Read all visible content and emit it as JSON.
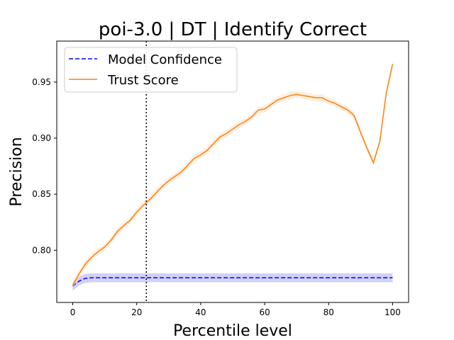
{
  "chart_data": {
    "type": "line",
    "title": "poi-3.0 | DT | Identify Correct",
    "xlabel": "Percentile level",
    "ylabel": "Precision",
    "xlim": [
      -5,
      105
    ],
    "ylim": [
      0.7535,
      0.9865
    ],
    "xticks": [
      0,
      20,
      40,
      60,
      80,
      100
    ],
    "yticks": [
      0.8,
      0.85,
      0.9,
      0.95
    ],
    "xtick_labels": [
      "0",
      "20",
      "40",
      "60",
      "80",
      "100"
    ],
    "ytick_labels": [
      "0.80",
      "0.85",
      "0.90",
      "0.95"
    ],
    "grid": false,
    "legend_position": "top-left",
    "vline": {
      "x": 23,
      "style": "dotted",
      "color": "#000000"
    },
    "series": [
      {
        "name": "Model Confidence",
        "color": "#0000ff",
        "style": "dashed",
        "band_color": "#9999ee",
        "x": [
          0,
          1,
          2,
          3,
          4,
          6,
          10,
          20,
          23,
          40,
          60,
          80,
          100
        ],
        "y": [
          0.768,
          0.7705,
          0.7725,
          0.774,
          0.775,
          0.7755,
          0.7755,
          0.7755,
          0.7755,
          0.7755,
          0.7755,
          0.7755,
          0.7755
        ],
        "band_halfwidth": 0.004
      },
      {
        "name": "Trust Score",
        "color": "#ff7f0e",
        "style": "solid",
        "band_color": "#ffd9b3",
        "x": [
          0,
          2,
          4,
          6,
          8,
          10,
          12,
          14,
          16,
          18,
          20,
          22,
          24,
          26,
          28,
          30,
          32,
          34,
          36,
          38,
          40,
          42,
          44,
          46,
          48,
          50,
          52,
          54,
          56,
          58,
          60,
          62,
          64,
          66,
          68,
          70,
          72,
          74,
          76,
          78,
          80,
          82,
          84,
          86,
          88,
          90,
          92,
          94,
          96,
          98,
          100
        ],
        "y": [
          0.769,
          0.779,
          0.788,
          0.794,
          0.799,
          0.803,
          0.809,
          0.817,
          0.822,
          0.827,
          0.834,
          0.84,
          0.845,
          0.851,
          0.857,
          0.862,
          0.866,
          0.87,
          0.876,
          0.882,
          0.885,
          0.889,
          0.895,
          0.901,
          0.904,
          0.908,
          0.912,
          0.915,
          0.919,
          0.925,
          0.926,
          0.93,
          0.934,
          0.936,
          0.938,
          0.939,
          0.938,
          0.937,
          0.936,
          0.936,
          0.933,
          0.931,
          0.928,
          0.925,
          0.92,
          0.905,
          0.891,
          0.878,
          0.897,
          0.94,
          0.966
        ],
        "band_halfwidth": 0.003
      }
    ]
  }
}
